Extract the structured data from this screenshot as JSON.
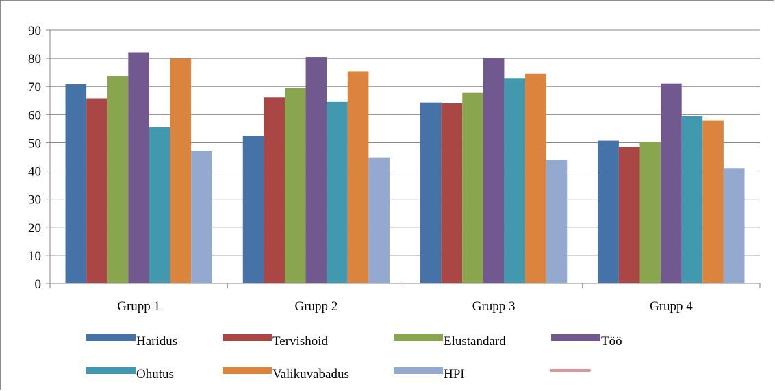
{
  "chart_data": {
    "type": "bar",
    "categories": [
      "Grupp 1",
      "Grupp 2",
      "Grupp 3",
      "Grupp 4"
    ],
    "series": [
      {
        "name": "Haridus",
        "color": "#4572A7",
        "values": [
          70.8,
          52.5,
          64.3,
          50.7
        ]
      },
      {
        "name": "Tervishoid",
        "color": "#AA4643",
        "values": [
          65.8,
          66.1,
          64.0,
          48.6
        ]
      },
      {
        "name": "Elustandard",
        "color": "#89A54E",
        "values": [
          73.7,
          69.5,
          67.7,
          50.2
        ]
      },
      {
        "name": "Töö",
        "color": "#71588F",
        "values": [
          82.1,
          80.5,
          80.2,
          71.1
        ]
      },
      {
        "name": "Ohutus",
        "color": "#4198AF",
        "values": [
          55.5,
          64.5,
          72.9,
          59.4
        ]
      },
      {
        "name": "Valikuvabadus",
        "color": "#DB843D",
        "values": [
          79.9,
          75.3,
          74.5,
          58.0
        ]
      },
      {
        "name": "HPI",
        "color": "#93A9CF",
        "values": [
          47.2,
          44.6,
          44.0,
          40.8
        ]
      }
    ],
    "extra_legend_line": {
      "name": "",
      "color": "#D99694"
    },
    "yticks": [
      "0",
      "10",
      "20",
      "30",
      "40",
      "50",
      "60",
      "70",
      "80",
      "90"
    ],
    "ylim": [
      0,
      90
    ],
    "grid": true,
    "legend_position": "bottom"
  }
}
